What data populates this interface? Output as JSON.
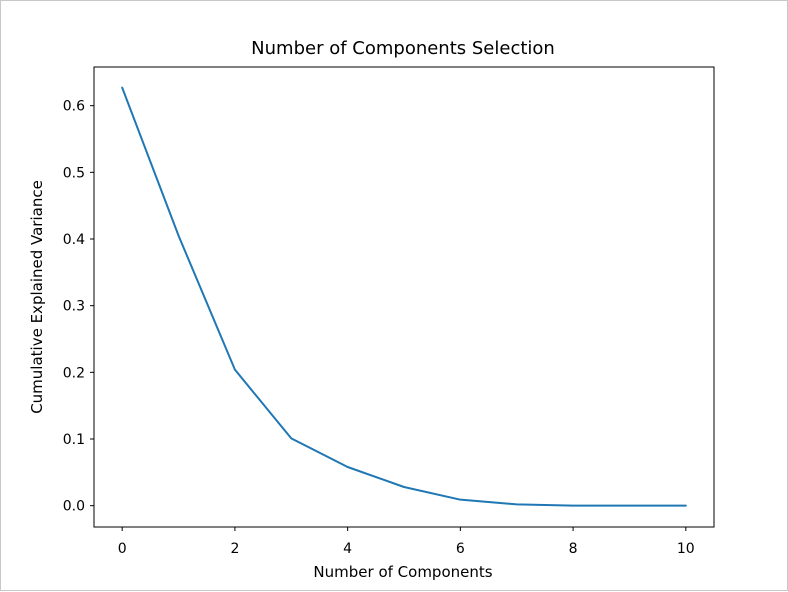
{
  "chart_data": {
    "type": "line",
    "title": "Number of Components Selection",
    "xlabel": "Number of Components",
    "ylabel": "Cumulative Explained Variance",
    "xlim": [
      -0.5,
      10.5
    ],
    "ylim": [
      -0.032,
      0.658
    ],
    "xticks": [
      0,
      2,
      4,
      6,
      8,
      10
    ],
    "yticks": [
      0.0,
      0.1,
      0.2,
      0.3,
      0.4,
      0.5,
      0.6
    ],
    "xtick_labels": [
      "0",
      "2",
      "4",
      "6",
      "8",
      "10"
    ],
    "ytick_labels": [
      "0.0",
      "0.1",
      "0.2",
      "0.3",
      "0.4",
      "0.5",
      "0.6"
    ],
    "grid": false,
    "series": [
      {
        "color": "#1f77b4",
        "x": [
          0,
          1,
          2,
          3,
          4,
          5,
          6,
          7,
          8,
          9,
          10
        ],
        "y": [
          0.627,
          0.405,
          0.204,
          0.101,
          0.058,
          0.028,
          0.009,
          0.002,
          0.0,
          0.0,
          0.0
        ]
      }
    ]
  }
}
